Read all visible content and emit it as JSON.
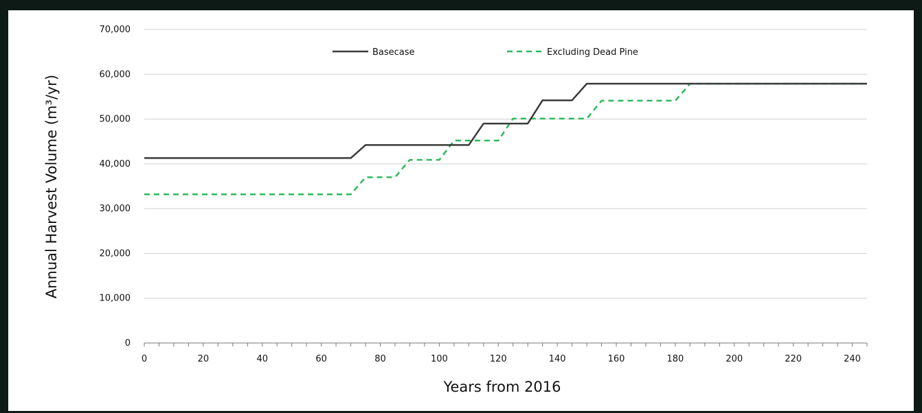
{
  "chart_data": {
    "type": "line",
    "title": "",
    "xlabel": "Years from 2016",
    "ylabel": "Annual Harvest Volume (m³/yr)",
    "xlim": [
      0,
      245
    ],
    "ylim": [
      0,
      70000
    ],
    "x_ticks": [
      0,
      20,
      40,
      60,
      80,
      100,
      120,
      140,
      160,
      180,
      200,
      220,
      240
    ],
    "y_ticks": [
      0,
      10000,
      20000,
      30000,
      40000,
      50000,
      60000,
      70000
    ],
    "x_tick_labels": [
      "0",
      "20",
      "40",
      "60",
      "80",
      "100",
      "120",
      "140",
      "160",
      "180",
      "200",
      "220",
      "240"
    ],
    "y_tick_labels": [
      "0",
      "10,000",
      "20,000",
      "30,000",
      "40,000",
      "50,000",
      "60,000",
      "70,000"
    ],
    "grid": "horizontal",
    "legend_position": "top",
    "series": [
      {
        "name": "Basecase",
        "color": "#3a3a3a",
        "style": "solid",
        "points": [
          [
            0,
            41300
          ],
          [
            70,
            41300
          ],
          [
            75,
            44200
          ],
          [
            110,
            44200
          ],
          [
            115,
            49000
          ],
          [
            130,
            49000
          ],
          [
            135,
            54200
          ],
          [
            145,
            54200
          ],
          [
            150,
            57900
          ],
          [
            245,
            57900
          ]
        ]
      },
      {
        "name": "Excluding Dead Pine",
        "color": "#2db85a",
        "style": "dashed",
        "points": [
          [
            0,
            33200
          ],
          [
            70,
            33200
          ],
          [
            75,
            37000
          ],
          [
            85,
            37000
          ],
          [
            90,
            40900
          ],
          [
            100,
            40900
          ],
          [
            105,
            45200
          ],
          [
            120,
            45200
          ],
          [
            125,
            50100
          ],
          [
            150,
            50100
          ],
          [
            155,
            54100
          ],
          [
            180,
            54100
          ],
          [
            185,
            57900
          ],
          [
            245,
            57900
          ]
        ]
      }
    ]
  }
}
